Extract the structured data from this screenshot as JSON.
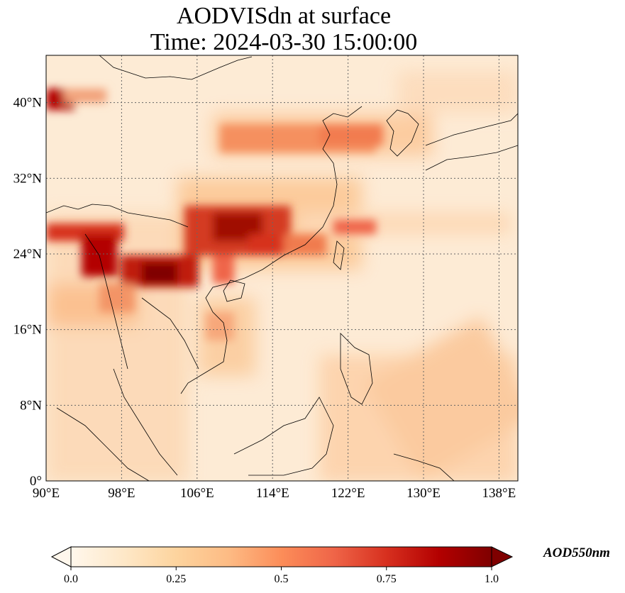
{
  "title_line1": "AODVISdn at surface",
  "title_line2": "Time: 2024-03-30 15:00:00",
  "lon_ticks": [
    "90°E",
    "98°E",
    "106°E",
    "114°E",
    "122°E",
    "130°E",
    "138°E"
  ],
  "lat_ticks": [
    "40°N",
    "32°N",
    "24°N",
    "16°N",
    "8°N",
    "0°"
  ],
  "colorbar": {
    "label": "AOD550nm",
    "ticks": [
      "0.0",
      "0.25",
      "0.5",
      "0.75",
      "1.0"
    ],
    "range": [
      0.0,
      1.0
    ],
    "colormap": "OrRd",
    "colors": [
      "#fff7ec",
      "#fee8c8",
      "#fdd49e",
      "#fdbb84",
      "#fc8d59",
      "#ef6548",
      "#d7301f",
      "#b30000",
      "#7f0000"
    ]
  },
  "extent": {
    "lon": [
      90,
      140
    ],
    "lat": [
      0,
      45
    ]
  }
}
